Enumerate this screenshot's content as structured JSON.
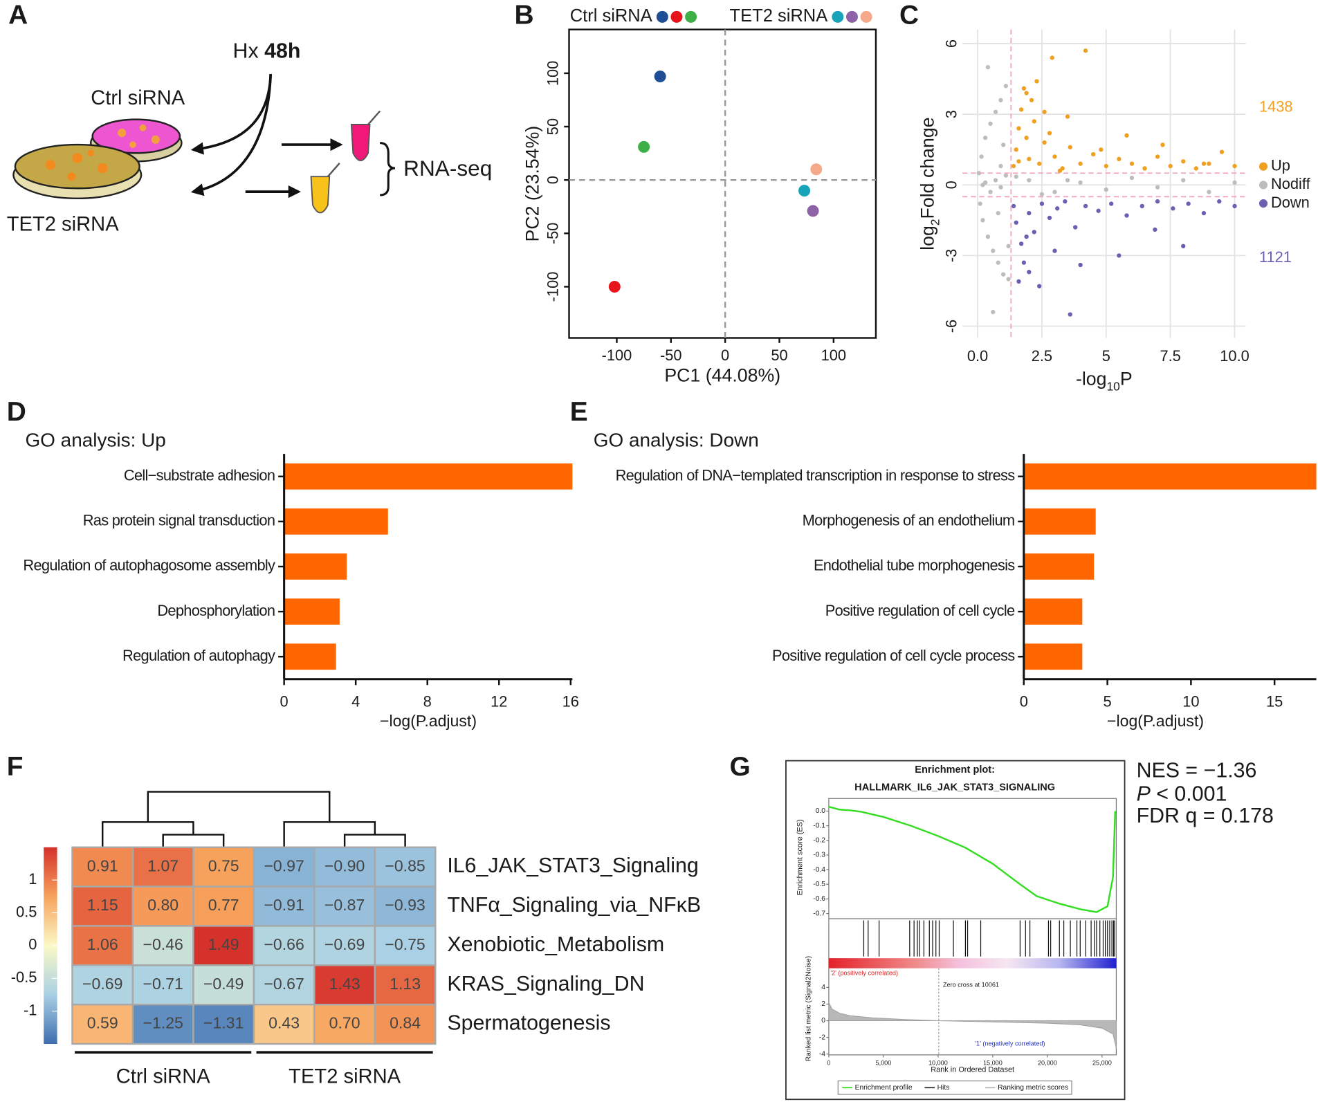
{
  "diagram": {
    "panel": "A",
    "treatment": "Hx",
    "duration": "48h",
    "ctrl": "Ctrl siRNA",
    "tet2": "TET2 siRNA",
    "assay": "RNA-seq"
  },
  "chart_data": [
    {
      "type": "scatter",
      "panel": "B",
      "xlabel": "PC1 (44.08%)",
      "ylabel": "PC2 (23.54%)",
      "xlim": [
        -144,
        139
      ],
      "ylim": [
        -148,
        141
      ],
      "xticks": [
        -100,
        -50,
        0,
        50,
        100
      ],
      "yticks": [
        -100,
        -50,
        0,
        50,
        100
      ],
      "zero_lines": true,
      "series": [
        {
          "name": "Ctrl siRNA",
          "colors": [
            "#1f4e96",
            "#e8141c",
            "#3cb046"
          ],
          "x": [
            -60,
            -102,
            -75
          ],
          "values": [
            97,
            -100,
            31
          ]
        },
        {
          "name": "TET2 siRNA",
          "colors": [
            "#17a3b8",
            "#8e62a6",
            "#f5a98a"
          ],
          "x": [
            73,
            81,
            84
          ],
          "values": [
            -10,
            -29,
            10
          ]
        }
      ]
    },
    {
      "type": "volcano",
      "panel": "C",
      "xlabel": {
        "text": "-log",
        "sub": "10",
        "tail": "P"
      },
      "ylabel": {
        "text": "log",
        "sub": "2",
        "tail": "Fold change"
      },
      "xlim": [
        -0.59,
        10.43
      ],
      "ylim": [
        -6.5,
        6.6
      ],
      "xticks": [
        {
          "value": 0,
          "label": "0.0"
        },
        2.5,
        5,
        7.5,
        {
          "value": 10,
          "label": "10.0"
        }
      ],
      "yticks": [
        -6,
        -3,
        0,
        3,
        6
      ],
      "grid": true,
      "x_threshold": 1.3,
      "y_thresholds": [
        -0.5,
        0.5
      ],
      "series": [
        {
          "name": "Up",
          "color": "#f0a020",
          "count": 1438,
          "x": [
            1.4,
            1.5,
            1.6,
            1.7,
            1.8,
            1.9,
            2.0,
            2.1,
            2.2,
            2.4,
            2.6,
            2.8,
            3.0,
            3.3,
            3.6,
            4.0,
            4.5,
            5.0,
            5.5,
            6.0,
            6.5,
            7.0,
            7.5,
            8.0,
            8.5,
            9.0,
            9.5,
            10.0,
            2.3,
            1.9,
            3.5,
            4.2,
            2.9,
            1.6,
            5.8,
            7.2,
            8.8,
            2.6,
            3.2,
            4.8
          ],
          "values": [
            0.8,
            1.5,
            2.4,
            3.2,
            4.1,
            2.0,
            1.1,
            3.6,
            2.7,
            0.9,
            1.8,
            2.2,
            1.2,
            0.7,
            1.6,
            0.9,
            1.3,
            0.8,
            1.1,
            0.9,
            0.7,
            1.2,
            0.8,
            1.0,
            0.7,
            0.9,
            1.4,
            0.8,
            4.4,
            3.9,
            2.9,
            5.7,
            5.4,
            1.0,
            2.1,
            1.7,
            0.9,
            3.1,
            0.6,
            1.5
          ]
        },
        {
          "name": "Nodiff",
          "color": "#bdbdbd",
          "x": [
            0.05,
            0.1,
            0.15,
            0.2,
            0.3,
            0.4,
            0.5,
            0.6,
            0.7,
            0.8,
            0.9,
            1.0,
            1.1,
            1.2,
            0.3,
            0.5,
            0.7,
            0.9,
            1.1,
            2.0,
            3.0,
            4.0,
            5.0,
            6.0,
            7.0,
            8.0,
            9.0,
            10.0,
            0.4,
            0.6,
            0.8,
            1.0,
            1.2,
            0.2,
            0.9,
            1.5,
            2.5,
            3.5
          ],
          "values": [
            0.5,
            -0.8,
            1.2,
            -1.5,
            2.0,
            -2.2,
            2.6,
            -2.8,
            3.1,
            -3.3,
            3.6,
            -3.8,
            4.2,
            -4.0,
            0.1,
            -0.3,
            0.2,
            -0.1,
            0.4,
            0.2,
            -0.3,
            0.1,
            -0.2,
            0.3,
            -0.1,
            0.2,
            -0.3,
            0.1,
            5.0,
            -5.4,
            -1.2,
            1.7,
            -2.6,
            0.0,
            0.8,
            0.35,
            -0.4,
            0.2
          ]
        },
        {
          "name": "Down",
          "color": "#6a5fb0",
          "count": 1121,
          "x": [
            1.4,
            1.5,
            1.7,
            1.8,
            2.0,
            2.2,
            2.5,
            2.8,
            3.1,
            3.4,
            3.8,
            4.2,
            4.7,
            5.2,
            5.8,
            6.4,
            7.0,
            7.6,
            8.2,
            8.8,
            9.4,
            10.0,
            1.6,
            2.0,
            3.0,
            3.6,
            2.4,
            1.9,
            5.5,
            8.0,
            4.0,
            6.9
          ],
          "values": [
            -0.9,
            -1.6,
            -2.5,
            -3.3,
            -1.2,
            -2.0,
            -0.8,
            -1.4,
            -1.0,
            -0.7,
            -1.8,
            -0.9,
            -1.1,
            -0.8,
            -1.3,
            -0.9,
            -0.7,
            -1.0,
            -0.8,
            -1.2,
            -0.7,
            -0.9,
            -4.1,
            -3.7,
            -2.8,
            -5.5,
            -4.3,
            -2.2,
            -3.0,
            -2.6,
            -3.4,
            -1.9
          ]
        }
      ]
    },
    {
      "type": "bar",
      "panel": "D",
      "title": "GO analysis: Up",
      "xlabel": "−log(P.adjust)",
      "color": "#ff6600",
      "categories": [
        "Cell−substrate adhesion",
        "Ras protein signal transduction",
        "Regulation of autophagosome assembly",
        "Dephosphorylation",
        "Regulation of autophagy"
      ],
      "values": [
        16.1,
        5.8,
        3.5,
        3.1,
        2.9
      ],
      "xlim": [
        0,
        16.1
      ],
      "xticks": [
        0,
        4,
        8,
        12,
        16
      ]
    },
    {
      "type": "bar",
      "panel": "E",
      "title": "GO analysis: Down",
      "xlabel": "−log(P.adjust)",
      "color": "#ff6600",
      "categories": [
        "Regulation of DNA−templated transcription in response to stress",
        "Morphogenesis of an endothelium",
        "Endothelial tube morphogenesis",
        "Positive regulation of cell cycle",
        "Positive regulation of cell cycle process"
      ],
      "values": [
        17.5,
        4.3,
        4.2,
        3.5,
        3.5
      ],
      "xlim": [
        0,
        17.5
      ],
      "xticks": [
        0,
        5,
        10,
        15
      ]
    },
    {
      "type": "heatmap",
      "panel": "F",
      "rows": [
        "IL6_JAK_STAT3_Signaling",
        "TNFα_Signaling_via_NFκB",
        "Xenobiotic_Metabolism",
        "KRAS_Signaling_DN",
        "Spermatogenesis"
      ],
      "groups": [
        "Ctrl siRNA",
        "TET2 siRNA"
      ],
      "values": [
        [
          0.91,
          1.07,
          0.75,
          -0.97,
          -0.9,
          -0.85
        ],
        [
          1.15,
          0.8,
          0.77,
          -0.91,
          -0.87,
          -0.93
        ],
        [
          1.06,
          -0.46,
          1.49,
          -0.66,
          -0.69,
          -0.75
        ],
        [
          -0.69,
          -0.71,
          -0.49,
          -0.67,
          1.43,
          1.13
        ],
        [
          0.59,
          -1.25,
          -1.31,
          0.43,
          0.7,
          0.84
        ]
      ],
      "value_labels": [
        [
          "0.91",
          "1.07",
          "0.75",
          "−0.97",
          "−0.90",
          "−0.85"
        ],
        [
          "1.15",
          "0.80",
          "0.77",
          "−0.91",
          "−0.87",
          "−0.93"
        ],
        [
          "1.06",
          "−0.46",
          "1.49",
          "−0.66",
          "−0.69",
          "−0.75"
        ],
        [
          "−0.69",
          "−0.71",
          "−0.49",
          "−0.67",
          "1.43",
          "1.13"
        ],
        [
          "0.59",
          "−1.25",
          "−1.31",
          "0.43",
          "0.70",
          "0.84"
        ]
      ],
      "clim": [
        -1.5,
        1.5
      ],
      "colorbar_ticks": [
        -1,
        -0.5,
        0,
        0.5,
        1
      ],
      "colors": [
        "#3d6db0",
        "#a9d0e4",
        "#fbf9c6",
        "#f7a25c",
        "#d5302a"
      ]
    },
    {
      "type": "enrichment",
      "panel": "G",
      "title": "Enrichment plot:",
      "subtitle": "HALLMARK_IL6_JAK_STAT3_SIGNALING",
      "ylabel": "Enrichment score (ES)",
      "xlabel": "Rank in Ordered Dataset",
      "color": "#33dd22",
      "xlim": [
        0,
        26300
      ],
      "xticks": [
        0,
        {
          "value": 5000,
          "label": "5,000"
        },
        {
          "value": 10000,
          "label": "10,000"
        },
        {
          "value": 15000,
          "label": "15,000"
        },
        {
          "value": 20000,
          "label": "20,000"
        },
        {
          "value": 25000,
          "label": "25,000"
        }
      ],
      "ylim": [
        -0.735,
        0.086
      ],
      "yticks": [
        {
          "value": 0,
          "label": "0.0"
        },
        -0.1,
        -0.2,
        -0.3,
        -0.4,
        -0.5,
        -0.6,
        -0.7
      ],
      "x": [
        0,
        1000,
        2000,
        3000,
        5000,
        7500,
        10000,
        12500,
        15000,
        17500,
        19000,
        21000,
        23000,
        24500,
        25500,
        26000,
        26200
      ],
      "values": [
        0.03,
        0.01,
        0.005,
        -0.005,
        -0.04,
        -0.1,
        -0.17,
        -0.25,
        -0.36,
        -0.5,
        -0.58,
        -0.63,
        -0.67,
        -0.69,
        -0.65,
        -0.45,
        0.0
      ],
      "hits": [
        3200,
        3600,
        4600,
        7400,
        7800,
        8100,
        8300,
        8700,
        9200,
        9500,
        9800,
        10100,
        11400,
        12500,
        12700,
        13900,
        17500,
        18000,
        18400,
        20100,
        20300,
        21100,
        21500,
        22100,
        22700,
        23000,
        23500,
        24000,
        24300,
        24500,
        24800,
        25100,
        25300,
        25500,
        25700,
        25900,
        26050,
        26150
      ],
      "metric": {
        "ylabel": "Ranked list metric (Signal2Noise)",
        "ylim": [
          -4.1,
          6.3
        ],
        "yticks": [
          -4,
          -2,
          0,
          2,
          4
        ],
        "x": [
          0,
          300,
          1000,
          2000,
          4000,
          7000,
          10061,
          15000,
          20000,
          23000,
          25000,
          26000,
          26300
        ],
        "values": [
          2.2,
          1.4,
          0.9,
          0.6,
          0.35,
          0.15,
          0,
          -0.15,
          -0.3,
          -0.5,
          -0.9,
          -1.6,
          -3.3
        ],
        "zero_cross": 10061,
        "zero_cross_label": "Zero cross at 10061",
        "positive_label": "'2' (positively correlated)",
        "negative_label": "'1' (negatively correlated)"
      },
      "legend": [
        "Enrichment profile",
        "Hits",
        "Ranking metric scores"
      ],
      "stats": {
        "nes": "NES = −1.36",
        "p_symbol": "P",
        "p_value": " < 0.001",
        "fdr": "FDR q = 0.178"
      }
    }
  ]
}
